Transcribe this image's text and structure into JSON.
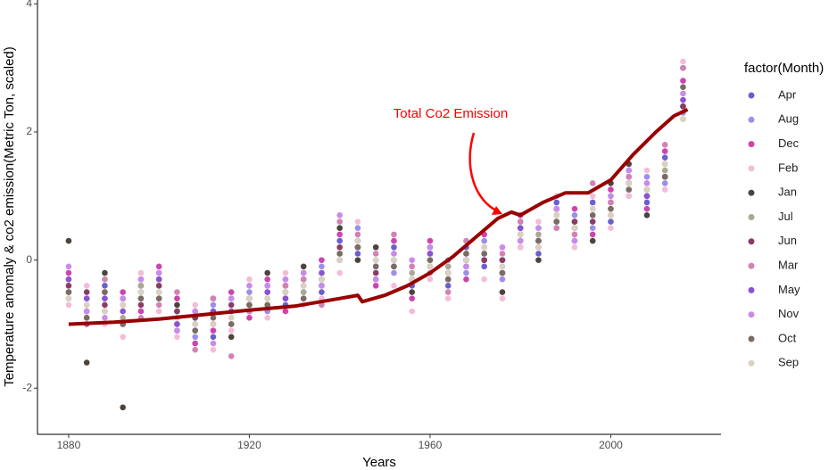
{
  "chart_data": {
    "type": "scatter",
    "x_label": "Years",
    "y_label": "Temperature anomaly & co2 emission(Metric Ton, scaled)",
    "legend_title": "factor(Month)",
    "annotation": "Total Co2 Emission",
    "annotation_color": "#ff0000",
    "xlim": [
      1873.1,
      2024.4
    ],
    "ylim": [
      -2.72,
      4.06
    ],
    "xticks": [
      1880,
      1920,
      1960,
      2000
    ],
    "yticks": [
      -2,
      0,
      2,
      4
    ],
    "x": [
      1880,
      1884,
      1888,
      1892,
      1896,
      1900,
      1904,
      1908,
      1912,
      1916,
      1920,
      1924,
      1928,
      1932,
      1936,
      1940,
      1944,
      1948,
      1952,
      1956,
      1960,
      1964,
      1968,
      1972,
      1976,
      1980,
      1984,
      1988,
      1992,
      1996,
      2000,
      2004,
      2008,
      2012,
      2016
    ],
    "series": [
      {
        "name": "Apr",
        "color": "#6b5fcf",
        "values": [
          -0.5,
          -0.8,
          -0.4,
          -1.0,
          -0.3,
          -0.6,
          -1.1,
          -0.8,
          -1.2,
          -0.6,
          -0.8,
          -0.4,
          -0.7,
          -0.2,
          -0.5,
          0.3,
          0.1,
          -0.3,
          0.2,
          -0.4,
          0.1,
          -0.4,
          0.2,
          -0.1,
          0.0,
          0.6,
          0.1,
          0.9,
          0.3,
          0.9,
          0.6,
          1.4,
          0.9,
          1.6,
          2.4
        ]
      },
      {
        "name": "Aug",
        "color": "#9c8fea",
        "values": [
          -0.3,
          -0.6,
          -0.8,
          -0.7,
          -0.6,
          -0.2,
          -0.8,
          -1.2,
          -0.7,
          -1.0,
          -0.5,
          -0.8,
          -0.3,
          -0.5,
          -0.1,
          0.0,
          0.5,
          0.0,
          -0.2,
          -0.1,
          -0.2,
          0.0,
          -0.2,
          0.3,
          -0.3,
          0.2,
          0.5,
          0.5,
          0.7,
          0.5,
          1.0,
          1.0,
          1.3,
          1.2,
          2.3
        ]
      },
      {
        "name": "Dec",
        "color": "#cc44b0",
        "values": [
          -0.2,
          -1.0,
          -0.5,
          -0.5,
          -0.8,
          -0.1,
          -0.6,
          -1.3,
          -1.1,
          -0.5,
          -0.9,
          -0.3,
          -0.8,
          -0.6,
          0.0,
          0.4,
          0.2,
          -0.4,
          0.3,
          -0.6,
          0.3,
          -0.1,
          -0.3,
          0.4,
          -0.2,
          0.7,
          0.2,
          0.6,
          0.8,
          0.4,
          1.1,
          1.3,
          0.8,
          1.7,
          2.8
        ]
      },
      {
        "name": "Feb",
        "color": "#f5bcd9",
        "values": [
          -0.7,
          -0.4,
          -1.0,
          -1.2,
          -0.2,
          -0.8,
          -1.2,
          -0.7,
          -1.4,
          -1.1,
          -0.3,
          -0.9,
          -0.2,
          -0.7,
          -0.6,
          -0.2,
          0.6,
          0.2,
          -0.4,
          -0.8,
          -0.3,
          -0.6,
          0.1,
          -0.3,
          -0.6,
          0.2,
          0.6,
          1.0,
          0.2,
          1.0,
          0.5,
          1.0,
          1.4,
          1.1,
          3.1
        ]
      },
      {
        "name": "Jan",
        "color": "#4c443c",
        "values": [
          0.3,
          -1.6,
          -0.2,
          -2.3,
          -0.4,
          -0.3,
          -0.7,
          -0.9,
          -0.6,
          -1.2,
          -0.6,
          -0.2,
          -0.4,
          -0.1,
          -0.4,
          0.5,
          0.0,
          0.2,
          -0.1,
          -0.5,
          0.2,
          -0.3,
          -0.1,
          0.0,
          -0.5,
          0.5,
          0.0,
          0.8,
          0.6,
          0.3,
          1.2,
          1.5,
          0.7,
          1.3,
          3.0
        ]
      },
      {
        "name": "Jul",
        "color": "#a9a893",
        "values": [
          -0.5,
          -0.7,
          -0.6,
          -0.9,
          -0.4,
          -0.5,
          -1.0,
          -1.1,
          -0.8,
          -0.9,
          -0.7,
          -0.6,
          -0.5,
          -0.5,
          -0.2,
          0.1,
          0.3,
          -0.1,
          0.1,
          -0.2,
          0.0,
          -0.1,
          0.1,
          0.2,
          -0.1,
          0.4,
          0.4,
          0.6,
          0.4,
          0.8,
          0.8,
          1.1,
          1.1,
          1.4,
          2.2
        ]
      },
      {
        "name": "Jun",
        "color": "#8a3b66",
        "values": [
          -0.4,
          -0.5,
          -0.7,
          -0.6,
          -0.7,
          -0.4,
          -0.8,
          -0.9,
          -1.0,
          -0.7,
          -0.6,
          -0.7,
          -0.6,
          -0.3,
          -0.3,
          0.2,
          0.2,
          -0.2,
          0.0,
          -0.3,
          -0.1,
          -0.2,
          0.0,
          0.0,
          0.0,
          0.3,
          0.3,
          0.7,
          0.6,
          0.6,
          0.9,
          1.2,
          1.0,
          1.3,
          2.4
        ]
      },
      {
        "name": "Mar",
        "color": "#d183b4",
        "values": [
          -0.6,
          -0.9,
          -0.3,
          -0.7,
          -0.9,
          -0.7,
          -0.5,
          -1.4,
          -0.6,
          -1.5,
          -0.8,
          -0.5,
          -0.4,
          -0.3,
          -0.7,
          0.6,
          0.4,
          0.1,
          0.4,
          -0.1,
          -0.2,
          -0.5,
          0.3,
          0.2,
          0.1,
          0.6,
          0.2,
          0.5,
          0.4,
          1.2,
          0.9,
          1.3,
          1.2,
          1.8,
          3.0
        ]
      },
      {
        "name": "May",
        "color": "#8b52d3",
        "values": [
          -0.3,
          -0.6,
          -0.6,
          -0.8,
          -0.5,
          -0.3,
          -1.0,
          -1.0,
          -0.8,
          -0.8,
          -0.7,
          -0.5,
          -0.6,
          -0.4,
          -0.2,
          0.0,
          0.3,
          -0.1,
          -0.1,
          -0.3,
          0.1,
          -0.2,
          0.0,
          0.1,
          -0.2,
          0.5,
          0.3,
          0.8,
          0.5,
          0.7,
          0.7,
          1.2,
          1.0,
          1.5,
          2.5
        ]
      },
      {
        "name": "Nov",
        "color": "#c98be9",
        "values": [
          -0.1,
          -0.8,
          -0.9,
          -0.6,
          -0.3,
          -0.2,
          -1.1,
          -0.8,
          -1.3,
          -0.6,
          -0.4,
          -0.4,
          -0.3,
          -0.2,
          -0.4,
          0.7,
          0.3,
          -0.3,
          0.1,
          0.0,
          0.2,
          -0.3,
          -0.1,
          0.1,
          0.2,
          0.3,
          0.5,
          0.8,
          0.3,
          0.7,
          1.0,
          1.4,
          1.2,
          1.5,
          2.6
        ]
      },
      {
        "name": "Oct",
        "color": "#7b6c63",
        "values": [
          -0.5,
          -0.9,
          -0.5,
          -1.0,
          -0.6,
          -0.6,
          -0.9,
          -1.1,
          -0.9,
          -1.0,
          -0.7,
          -0.7,
          -0.5,
          -0.6,
          -0.3,
          0.1,
          0.2,
          -0.1,
          -0.1,
          -0.3,
          0.0,
          -0.3,
          0.1,
          0.1,
          -0.2,
          0.4,
          0.3,
          0.6,
          0.5,
          0.7,
          0.8,
          1.1,
          1.1,
          1.3,
          2.7
        ]
      },
      {
        "name": "Sep",
        "color": "#d9d2c1",
        "values": [
          -0.6,
          -0.7,
          -0.8,
          -0.7,
          -0.5,
          -0.5,
          -0.9,
          -1.0,
          -1.0,
          -0.9,
          -0.6,
          -0.6,
          -0.5,
          -0.4,
          -0.3,
          0.0,
          0.3,
          0.0,
          0.0,
          -0.3,
          -0.1,
          -0.2,
          0.0,
          0.2,
          -0.1,
          0.4,
          0.2,
          0.7,
          0.5,
          0.8,
          0.7,
          1.2,
          1.1,
          1.5,
          2.2
        ]
      }
    ],
    "line": {
      "color": "#990000",
      "x": [
        1880,
        1890,
        1900,
        1910,
        1920,
        1930,
        1940,
        1944,
        1945,
        1950,
        1955,
        1960,
        1965,
        1970,
        1975,
        1978,
        1980,
        1985,
        1990,
        1995,
        2000,
        2005,
        2010,
        2014,
        2017
      ],
      "values": [
        -1.0,
        -0.97,
        -0.92,
        -0.85,
        -0.78,
        -0.72,
        -0.6,
        -0.55,
        -0.65,
        -0.55,
        -0.4,
        -0.2,
        0.05,
        0.35,
        0.65,
        0.75,
        0.7,
        0.9,
        1.05,
        1.05,
        1.25,
        1.65,
        2.0,
        2.25,
        2.35
      ]
    }
  }
}
